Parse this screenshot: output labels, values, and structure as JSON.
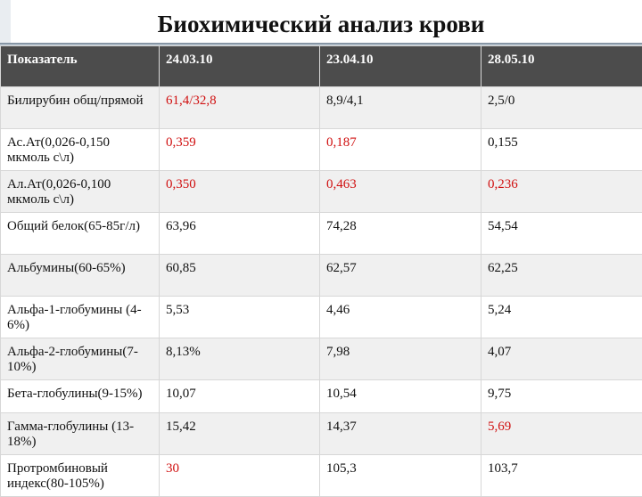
{
  "title": "Биохимический анализ крови",
  "colors": {
    "header_bg": "#4c4c4c",
    "abnormal_value": "#d01010",
    "normal_value": "#111111",
    "stripe": "#f0f0f0"
  },
  "table": {
    "headers": [
      "Показатель",
      "24.03.10",
      "23.04.10",
      "28.05.10"
    ],
    "rows": [
      {
        "name": "Билирубин общ/прямой",
        "values": [
          "61,4/32,8",
          "8,9/4,1",
          "2,5/0"
        ],
        "flags": [
          "high",
          "normal",
          "normal"
        ]
      },
      {
        "name": "Ас.Ат(0,026-0,150 мкмоль с\\л)",
        "values": [
          "0,359",
          "0,187",
          "0,155"
        ],
        "flags": [
          "high",
          "high",
          "normal"
        ]
      },
      {
        "name": "Ал.Ат(0,026-0,100 мкмоль с\\л)",
        "values": [
          "0,350",
          "0,463",
          "0,236"
        ],
        "flags": [
          "high",
          "high",
          "high"
        ]
      },
      {
        "name": "Общий белок(65-85г/л)",
        "values": [
          "63,96",
          "74,28",
          "54,54"
        ],
        "flags": [
          "normal",
          "normal",
          "normal"
        ]
      },
      {
        "name": "Альбумины(60-65%)",
        "values": [
          "60,85",
          "62,57",
          "62,25"
        ],
        "flags": [
          "normal",
          "normal",
          "normal"
        ]
      },
      {
        "name": "Альфа-1-глобумины (4-6%)",
        "values": [
          "5,53",
          "4,46",
          "5,24"
        ],
        "flags": [
          "normal",
          "normal",
          "normal"
        ]
      },
      {
        "name": "Альфа-2-глобумины(7-10%)",
        "values": [
          "8,13%",
          "7,98",
          "4,07"
        ],
        "flags": [
          "normal",
          "normal",
          "normal"
        ]
      },
      {
        "name": "Бета-глобулины(9-15%)",
        "values": [
          "10,07",
          "10,54",
          "9,75"
        ],
        "flags": [
          "normal",
          "normal",
          "normal"
        ]
      },
      {
        "name": "Гамма-глобулины (13-18%)",
        "values": [
          "15,42",
          "14,37",
          "5,69"
        ],
        "flags": [
          "normal",
          "normal",
          "high"
        ]
      },
      {
        "name": "Протромбиновый индекс(80-105%)",
        "values": [
          "30",
          "105,3",
          "103,7"
        ],
        "flags": [
          "high",
          "normal",
          "normal"
        ]
      }
    ]
  }
}
